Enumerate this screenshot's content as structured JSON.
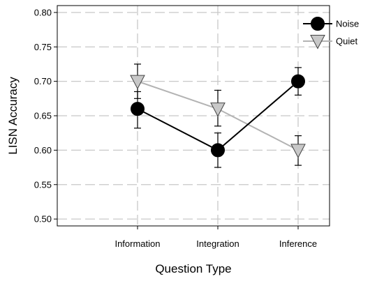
{
  "chart_data": {
    "type": "line",
    "xlabel": "Question Type",
    "ylabel": "LISN Accuracy",
    "categories": [
      "Information",
      "Integration",
      "Inference"
    ],
    "ylim": [
      0.49,
      0.81
    ],
    "yticks": [
      "0.50",
      "0.55",
      "0.60",
      "0.65",
      "0.70",
      "0.75",
      "0.80"
    ],
    "grid": true,
    "legend": "top-right",
    "series": [
      {
        "name": "Noise",
        "marker": "circle",
        "line_color": "#000000",
        "marker_color": "#000000",
        "values": [
          0.66,
          0.6,
          0.7
        ],
        "err_low": [
          0.632,
          0.575,
          0.68
        ],
        "err_high": [
          0.685,
          0.625,
          0.72
        ]
      },
      {
        "name": "Quiet",
        "marker": "triangle-down",
        "line_color": "#b3b3b3",
        "marker_color": "#c8c8c8",
        "values": [
          0.7,
          0.66,
          0.6
        ],
        "err_low": [
          0.675,
          0.635,
          0.578
        ],
        "err_high": [
          0.725,
          0.687,
          0.621
        ]
      }
    ]
  }
}
